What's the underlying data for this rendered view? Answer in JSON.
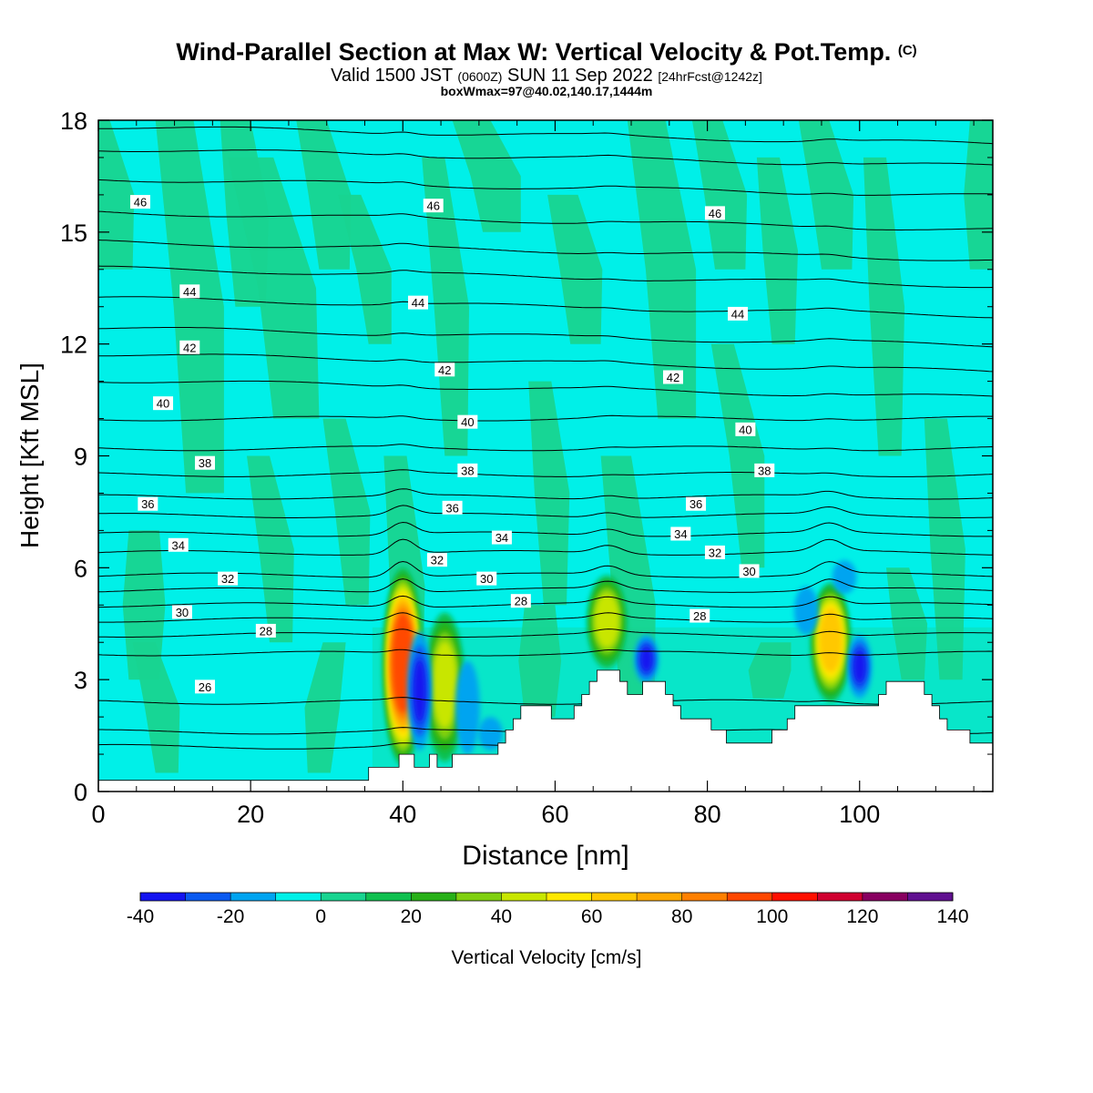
{
  "title": "Wind-Parallel Section at Max W: Vertical Velocity & Pot.Temp.",
  "title_tag": "(C)",
  "valid_prefix": "Valid 1500 JST",
  "valid_utc": "(0600Z)",
  "valid_date": "SUN 11 Sep 2022",
  "valid_fcst": "[24hrFcst@1242z]",
  "box_info": "boxWmax=97@40.02,140.17,1444m",
  "colors": {
    "background": "#00f0e8",
    "positive_light": "#18d490",
    "terrain": "#ffffff",
    "contour": "#000000"
  },
  "chart_data": {
    "type": "heatmap",
    "xlabel": "Distance [nm]",
    "ylabel": "Height [Kft MSL]",
    "xlim": [
      0,
      117.5
    ],
    "ylim": [
      0,
      18
    ],
    "x_ticks": [
      0,
      20,
      40,
      60,
      80,
      100
    ],
    "y_ticks": [
      0,
      3,
      6,
      9,
      12,
      15,
      18
    ],
    "colorbar": {
      "label": "Vertical Velocity [cm/s]",
      "tick_labels": [
        "-40",
        "-20",
        "0",
        "20",
        "40",
        "60",
        "80",
        "100",
        "120",
        "140"
      ],
      "bins": [
        -40,
        -30,
        -20,
        -10,
        0,
        10,
        20,
        30,
        40,
        50,
        60,
        70,
        80,
        90,
        100,
        110,
        120,
        130,
        140
      ],
      "colors": [
        "#1414f0",
        "#0a5af0",
        "#00a4f0",
        "#00f0e8",
        "#18d490",
        "#10c050",
        "#28b018",
        "#80d010",
        "#c8e600",
        "#ffe800",
        "#ffc800",
        "#ffa800",
        "#ff8000",
        "#ff4800",
        "#ff1000",
        "#d00030",
        "#880060",
        "#601090"
      ]
    },
    "terrain": [
      [
        0,
        0.3
      ],
      [
        35.5,
        0.3
      ],
      [
        35.5,
        0.65
      ],
      [
        39.5,
        0.65
      ],
      [
        39.5,
        1.0
      ],
      [
        41.5,
        1.0
      ],
      [
        41.5,
        0.65
      ],
      [
        43.5,
        0.65
      ],
      [
        43.5,
        1.0
      ],
      [
        44.5,
        1.0
      ],
      [
        44.5,
        0.65
      ],
      [
        46.5,
        0.65
      ],
      [
        46.5,
        1.0
      ],
      [
        52.5,
        1.0
      ],
      [
        52.5,
        1.3
      ],
      [
        53.5,
        1.3
      ],
      [
        53.5,
        1.65
      ],
      [
        54.5,
        1.65
      ],
      [
        54.5,
        1.95
      ],
      [
        55.5,
        1.95
      ],
      [
        55.5,
        2.3
      ],
      [
        59.5,
        2.3
      ],
      [
        59.5,
        1.95
      ],
      [
        62.5,
        1.95
      ],
      [
        62.5,
        2.3
      ],
      [
        63.5,
        2.3
      ],
      [
        63.5,
        2.6
      ],
      [
        64.5,
        2.6
      ],
      [
        64.5,
        2.95
      ],
      [
        65.5,
        2.95
      ],
      [
        65.5,
        3.25
      ],
      [
        68.5,
        3.25
      ],
      [
        68.5,
        2.95
      ],
      [
        69.5,
        2.95
      ],
      [
        69.5,
        2.6
      ],
      [
        71.5,
        2.6
      ],
      [
        71.5,
        2.95
      ],
      [
        74.5,
        2.95
      ],
      [
        74.5,
        2.6
      ],
      [
        75.5,
        2.6
      ],
      [
        75.5,
        2.3
      ],
      [
        76.5,
        2.3
      ],
      [
        76.5,
        1.95
      ],
      [
        80.5,
        1.95
      ],
      [
        80.5,
        1.65
      ],
      [
        82.5,
        1.65
      ],
      [
        82.5,
        1.3
      ],
      [
        88.5,
        1.3
      ],
      [
        88.5,
        1.65
      ],
      [
        90.5,
        1.65
      ],
      [
        90.5,
        1.95
      ],
      [
        91.5,
        1.95
      ],
      [
        91.5,
        2.3
      ],
      [
        102.5,
        2.3
      ],
      [
        102.5,
        2.6
      ],
      [
        103.5,
        2.6
      ],
      [
        103.5,
        2.95
      ],
      [
        108.5,
        2.95
      ],
      [
        108.5,
        2.6
      ],
      [
        109.5,
        2.6
      ],
      [
        109.5,
        2.3
      ],
      [
        110.5,
        2.3
      ],
      [
        110.5,
        1.95
      ],
      [
        111.5,
        1.95
      ],
      [
        111.5,
        1.65
      ],
      [
        114.5,
        1.65
      ],
      [
        114.5,
        1.3
      ],
      [
        117.5,
        1.3
      ]
    ],
    "updrafts": [
      {
        "x": 40.0,
        "z_bottom": 0.7,
        "z_top": 6.0,
        "w_max": 97
      },
      {
        "x": 45.5,
        "z_bottom": 0.8,
        "z_top": 4.8,
        "w_max": 45
      },
      {
        "x": 66.8,
        "z_bottom": 3.3,
        "z_top": 5.8,
        "w_max": 42
      },
      {
        "x": 96.2,
        "z_bottom": 2.4,
        "z_top": 5.6,
        "w_max": 60
      }
    ],
    "downdrafts": [
      {
        "x": 42.2,
        "z_bottom": 1.1,
        "z_top": 4.3,
        "w_min": -35
      },
      {
        "x": 48.5,
        "z_bottom": 1.0,
        "z_top": 3.5,
        "w_min": -15
      },
      {
        "x": 51.5,
        "z_bottom": 1.1,
        "z_top": 2.0,
        "w_min": -12
      },
      {
        "x": 72.0,
        "z_bottom": 2.9,
        "z_top": 4.2,
        "w_min": -30
      },
      {
        "x": 100.0,
        "z_bottom": 2.5,
        "z_top": 4.2,
        "w_min": -33
      },
      {
        "x": 93.0,
        "z_bottom": 4.2,
        "z_top": 5.5,
        "w_min": -18
      },
      {
        "x": 98.0,
        "z_bottom": 5.3,
        "z_top": 6.2,
        "w_min": -15
      }
    ],
    "theta_contours": [
      {
        "value": 26,
        "z": 2.4,
        "labels": [
          [
            14,
            2.8
          ]
        ]
      },
      {
        "value": 28,
        "z": 3.7,
        "labels": [
          [
            22,
            4.3
          ],
          [
            55.5,
            5.1
          ],
          [
            79,
            4.7
          ]
        ]
      },
      {
        "value": 30,
        "z": 4.6,
        "labels": [
          [
            11,
            4.8
          ],
          [
            51,
            5.7
          ],
          [
            85.5,
            5.9
          ]
        ]
      },
      {
        "value": 32,
        "z": 5.4,
        "labels": [
          [
            17,
            5.7
          ],
          [
            44.5,
            6.2
          ],
          [
            81,
            6.4
          ]
        ]
      },
      {
        "value": 34,
        "z": 6.4,
        "labels": [
          [
            10.5,
            6.6
          ],
          [
            53,
            6.8
          ],
          [
            76.5,
            6.9
          ]
        ]
      },
      {
        "value": 36,
        "z": 7.4,
        "labels": [
          [
            6.5,
            7.7
          ],
          [
            46.5,
            7.6
          ],
          [
            78.5,
            7.7
          ]
        ]
      },
      {
        "value": 38,
        "z": 8.5,
        "labels": [
          [
            14,
            8.8
          ],
          [
            48.5,
            8.6
          ],
          [
            87.5,
            8.6
          ]
        ]
      },
      {
        "value": 40,
        "z": 10.0,
        "labels": [
          [
            8.5,
            10.4
          ],
          [
            48.5,
            9.9
          ],
          [
            85,
            9.7
          ]
        ]
      },
      {
        "value": 42,
        "z": 11.5,
        "labels": [
          [
            12,
            11.9
          ],
          [
            45.5,
            11.3
          ],
          [
            75.5,
            11.1
          ]
        ]
      },
      {
        "value": 44,
        "z": 13.0,
        "labels": [
          [
            12,
            13.4
          ],
          [
            42,
            13.1
          ],
          [
            84,
            12.8
          ]
        ]
      },
      {
        "value": 46,
        "z": 15.3,
        "labels": [
          [
            5.5,
            15.8
          ],
          [
            44,
            15.7
          ],
          [
            81,
            15.5
          ]
        ]
      }
    ],
    "theta_extra_lines": [
      4.2,
      5.0,
      5.8,
      6.9,
      7.9,
      9.2,
      10.8,
      12.2,
      13.8,
      14.5,
      16.2,
      17.0,
      17.6
    ]
  }
}
